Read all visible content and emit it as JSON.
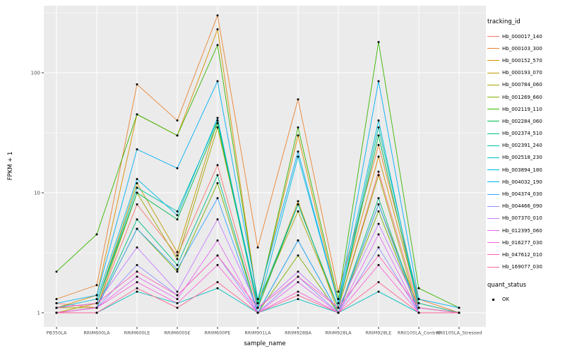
{
  "chart_data": {
    "type": "line",
    "title": "",
    "xlabel": "sample_name",
    "ylabel": "FPKM + 1",
    "y_scale": "log10",
    "y_ticks": [
      1,
      10,
      100
    ],
    "ylim_log": [
      -0.12,
      2.56
    ],
    "grid": "on",
    "legend": {
      "title": "tracking_id",
      "position": "right"
    },
    "quant_legend": {
      "title": "quant_status",
      "items": [
        {
          "label": "OK",
          "marker": "point",
          "color": "#000000"
        }
      ]
    },
    "style": {
      "panel_background": "#EBEBEB",
      "grid_color": "#FFFFFF",
      "axis_text_color": "#4D4D4D",
      "tick_color": "#333333",
      "point_color": "#000000"
    },
    "categories": [
      "PB350LA",
      "RRIM600LA",
      "RRIM600LE",
      "RRIM600SE",
      "RRIM600PE",
      "RRIM901LA",
      "RRIM928BA",
      "RRIM928LA",
      "RRIM928LE",
      "RRII105LA_Control",
      "RRII105LA_Stressed"
    ],
    "series": [
      {
        "name": "Hb_000017_140",
        "color": "#F8766D",
        "values": [
          1.2,
          1.1,
          8,
          3,
          17,
          1.1,
          8,
          1.1,
          15,
          1.1,
          1.0
        ]
      },
      {
        "name": "Hb_000103_300",
        "color": "#EA8331",
        "values": [
          1.3,
          1.7,
          80,
          40,
          300,
          3.5,
          60,
          1.5,
          25,
          1.3,
          1.0
        ]
      },
      {
        "name": "Hb_000152_570",
        "color": "#D89000",
        "values": [
          1.1,
          1.4,
          45,
          30,
          230,
          1.2,
          30,
          1.2,
          20,
          1.2,
          1.0
        ]
      },
      {
        "name": "Hb_000193_070",
        "color": "#C09B00",
        "values": [
          1.0,
          1.2,
          12,
          3.2,
          40,
          1.1,
          8.5,
          1.0,
          8,
          1.1,
          1.0
        ]
      },
      {
        "name": "Hb_000784_060",
        "color": "#A3A500",
        "values": [
          1.1,
          1.1,
          10,
          2.8,
          35,
          1.2,
          7,
          1.1,
          14,
          1.0,
          1.0
        ]
      },
      {
        "name": "Hb_001269_660",
        "color": "#7CAE00",
        "values": [
          1.0,
          1.1,
          5,
          2.2,
          12,
          1.0,
          3,
          1.0,
          7,
          1.0,
          1.0
        ]
      },
      {
        "name": "Hb_002119_110",
        "color": "#39B600",
        "values": [
          2.2,
          4.5,
          45,
          30,
          170,
          1.2,
          35,
          1.3,
          180,
          1.6,
          1.1
        ]
      },
      {
        "name": "Hb_002284_060",
        "color": "#00BB4E",
        "values": [
          1.1,
          1.2,
          10,
          6,
          38,
          1.1,
          8,
          1.1,
          30,
          1.1,
          1.0
        ]
      },
      {
        "name": "Hb_002374_510",
        "color": "#00C087",
        "values": [
          1.0,
          1.1,
          6,
          2.5,
          14,
          1.0,
          4,
          1.0,
          9,
          1.0,
          1.0
        ]
      },
      {
        "name": "Hb_002391_240",
        "color": "#00C1A3",
        "values": [
          1.1,
          1.2,
          11,
          7,
          40,
          1.2,
          8,
          1.1,
          35,
          1.2,
          1.0
        ]
      },
      {
        "name": "Hb_002518_230",
        "color": "#00BFC4",
        "values": [
          1.0,
          1.0,
          1.5,
          1.2,
          1.6,
          1.0,
          1.3,
          1.0,
          1.5,
          1.0,
          1.0
        ]
      },
      {
        "name": "Hb_003894_180",
        "color": "#00BAE0",
        "values": [
          1.1,
          1.3,
          13,
          6.5,
          42,
          1.1,
          20,
          1.2,
          40,
          1.1,
          1.0
        ]
      },
      {
        "name": "Hb_004032_190",
        "color": "#00B0F6",
        "values": [
          1.2,
          1.4,
          23,
          16,
          85,
          1.3,
          22,
          1.2,
          85,
          1.3,
          1.1
        ]
      },
      {
        "name": "Hb_004374_030",
        "color": "#35A2FF",
        "values": [
          1.0,
          1.1,
          5,
          2.3,
          9,
          1.0,
          4,
          1.0,
          8,
          1.0,
          1.0
        ]
      },
      {
        "name": "Hb_004466_090",
        "color": "#9590FF",
        "values": [
          1.0,
          1.1,
          2.5,
          1.4,
          3,
          1.0,
          2,
          1.0,
          3.5,
          1.0,
          1.0
        ]
      },
      {
        "name": "Hb_007370_010",
        "color": "#C77CFF",
        "values": [
          1.1,
          1.2,
          3.5,
          1.5,
          6,
          1.1,
          2.2,
          1.1,
          5.5,
          1.1,
          1.0
        ]
      },
      {
        "name": "Hb_012395_060",
        "color": "#E76BF3",
        "values": [
          1.0,
          1.1,
          2.0,
          1.3,
          4,
          1.0,
          1.8,
          1.0,
          4.5,
          1.0,
          1.0
        ]
      },
      {
        "name": "Hb_016277_030",
        "color": "#FA62DB",
        "values": [
          1.0,
          1.1,
          1.8,
          1.2,
          2.5,
          1.0,
          1.5,
          1.0,
          2.5,
          1.0,
          1.0
        ]
      },
      {
        "name": "Hb_047612_010",
        "color": "#FF62BC",
        "values": [
          1.1,
          1.2,
          2.2,
          1.4,
          3,
          1.1,
          2,
          1.1,
          3,
          1.1,
          1.0
        ]
      },
      {
        "name": "Hb_169077_030",
        "color": "#FF6A98",
        "values": [
          1.0,
          1.0,
          1.6,
          1.1,
          1.8,
          1.0,
          1.4,
          1.0,
          1.8,
          1.0,
          1.0
        ]
      }
    ]
  }
}
